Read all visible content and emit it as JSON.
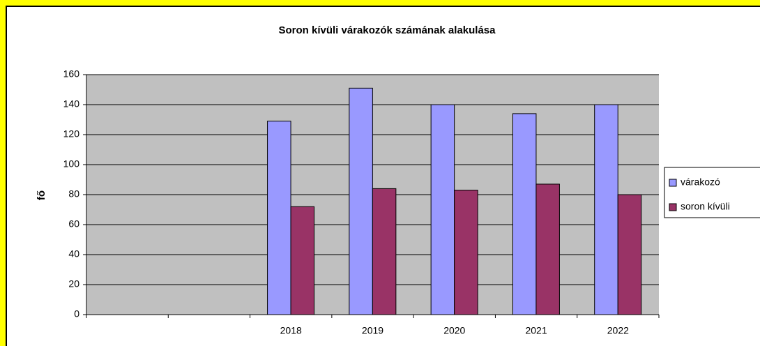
{
  "chart_data": {
    "type": "bar",
    "title": "Soron kívüli várakozók számának alakulása",
    "y_label": "fő",
    "categories": [
      null,
      null,
      "2018",
      "2019",
      "2020",
      "2021",
      "2022"
    ],
    "series": [
      {
        "name": "várakozó",
        "color": "#9999ff",
        "values": [
          null,
          null,
          129,
          151,
          140,
          134,
          140
        ]
      },
      {
        "name": "soron kívüli",
        "color": "#993366",
        "values": [
          null,
          null,
          72,
          84,
          83,
          87,
          80
        ]
      }
    ],
    "ylim": [
      0,
      160
    ],
    "yticks": [
      0,
      20,
      40,
      60,
      80,
      100,
      120,
      140,
      160
    ],
    "grid": true,
    "legend": "right"
  }
}
